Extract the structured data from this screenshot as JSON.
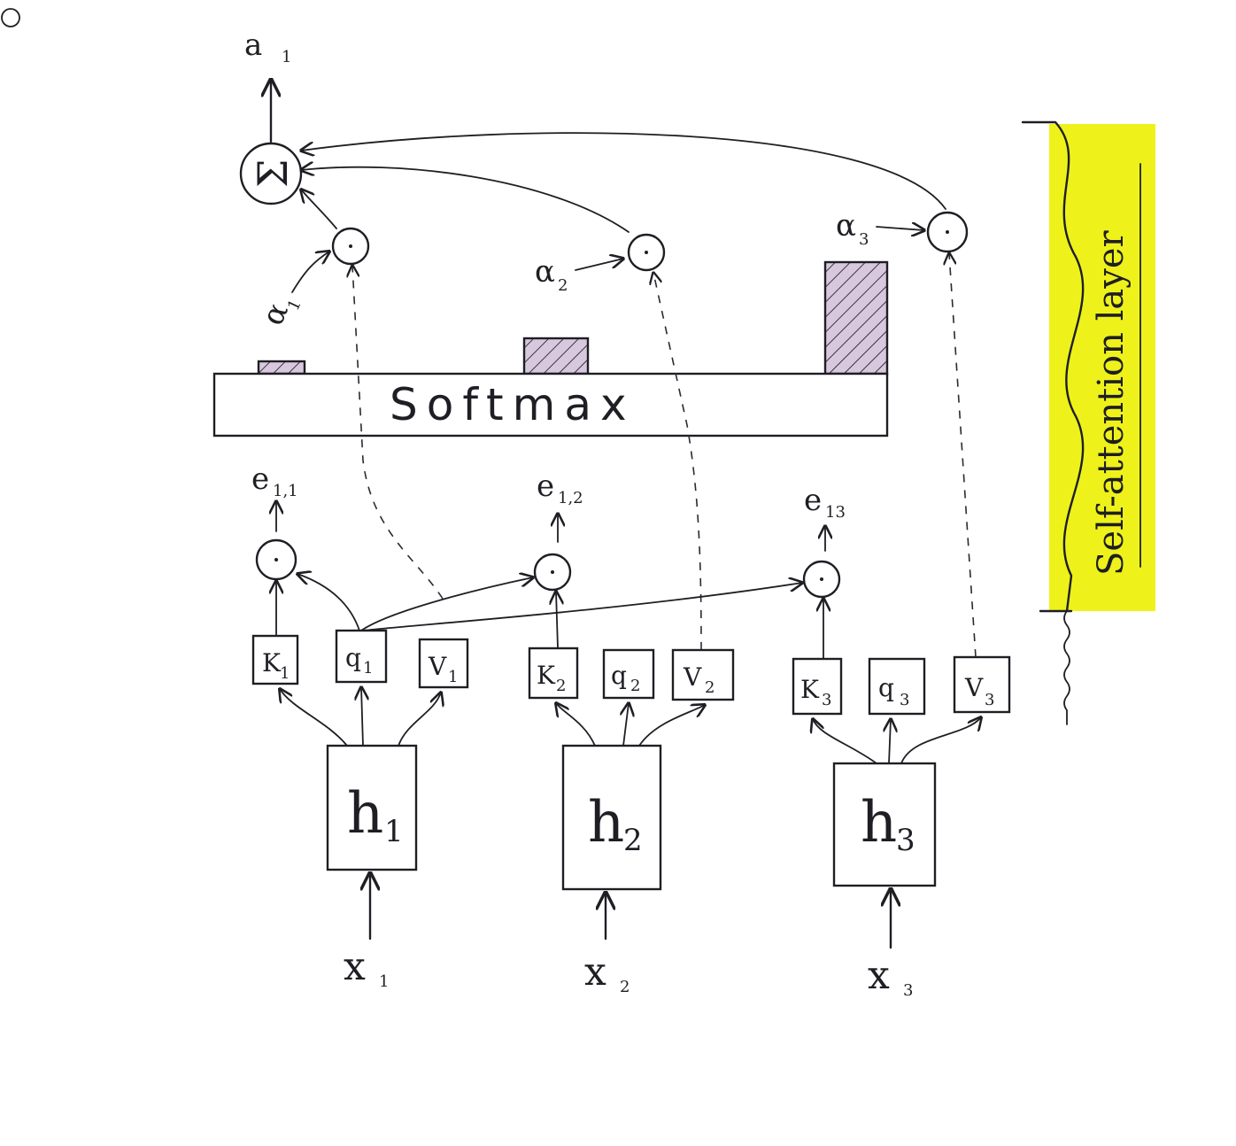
{
  "diagram": {
    "output": {
      "label": "a",
      "sub": "1"
    },
    "softmax_label": "Softmax",
    "side_note": "Self-attention layer",
    "alphas": [
      {
        "label": "α",
        "sub": "1"
      },
      {
        "label": "α",
        "sub": "2"
      },
      {
        "label": "α",
        "sub": "3"
      }
    ],
    "scores": [
      {
        "label": "e",
        "sub": "1,1"
      },
      {
        "label": "e",
        "sub": "1,2"
      },
      {
        "label": "e",
        "sub": "13"
      }
    ],
    "tokens": [
      {
        "k": "K",
        "q": "q",
        "v": "V",
        "sub": "1",
        "h": "h",
        "x": "x"
      },
      {
        "k": "K",
        "q": "q",
        "v": "V",
        "sub": "2",
        "h": "h",
        "x": "x"
      },
      {
        "k": "K",
        "q": "q",
        "v": "V",
        "sub": "3",
        "h": "h",
        "x": "x"
      }
    ],
    "weights": [
      0.08,
      0.22,
      0.7
    ],
    "colors": {
      "ink": "#1e1e24",
      "highlight": "#eef21a",
      "bar_fill": "#d8c8de"
    }
  }
}
